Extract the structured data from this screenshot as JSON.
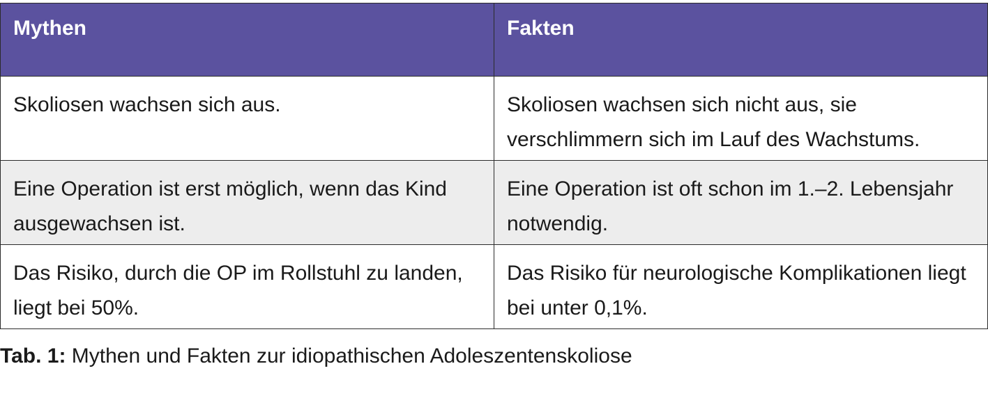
{
  "table": {
    "header_color": "#5b529f",
    "headers": [
      "Mythen",
      "Fakten"
    ],
    "rows": [
      {
        "myth": "Skoliosen wachsen sich aus.",
        "fact": "Skoliosen wachsen sich nicht aus, sie verschlimmern sich im Lauf des Wachstums."
      },
      {
        "myth": "Eine Operation ist erst möglich, wenn das Kind ausgewachsen ist.",
        "fact": "Eine Operation ist oft schon im 1.–2. Lebensjahr notwendig."
      },
      {
        "myth": "Das Risiko, durch die OP im Rollstuhl zu landen, liegt bei 50%.",
        "fact": "Das Risiko für neurologische Komplikationen liegt bei unter 0,1%."
      }
    ]
  },
  "caption": {
    "label": "Tab. 1:",
    "text": "Mythen und Fakten zur idiopathischen Adoleszentenskoliose"
  }
}
